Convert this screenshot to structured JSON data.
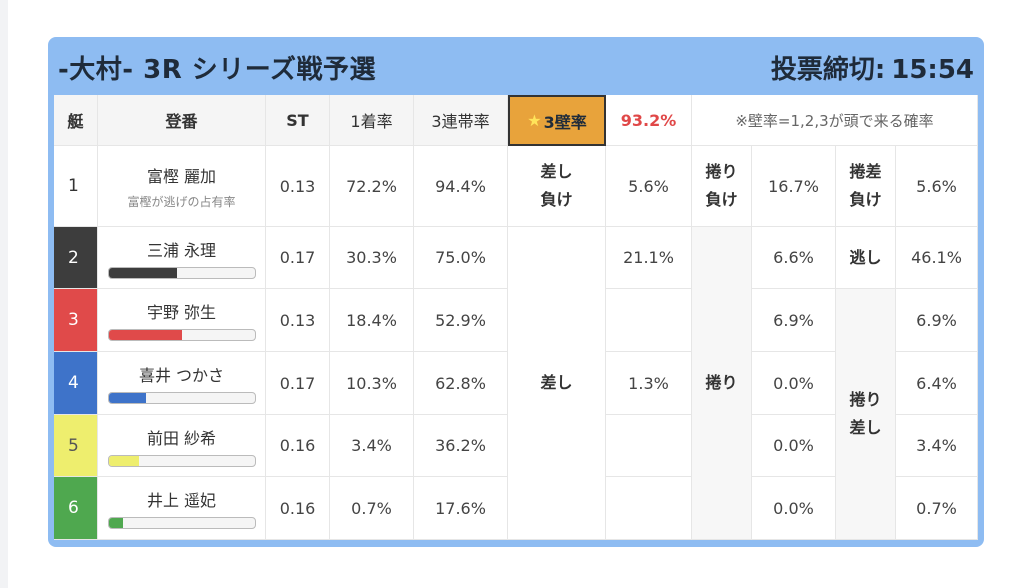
{
  "header": {
    "title": "-大村- 3R シリーズ戦予選",
    "deadline_label": "投票締切:",
    "deadline_time": "15:54"
  },
  "columns": {
    "waku": "艇",
    "name": "登番",
    "st": "ST",
    "first": "1着率",
    "trio": "3連帯率",
    "wall_star": "★",
    "wall_label": "3壁率",
    "wall_value": "93.2%",
    "note": "※壁率=1,2,3が頭で来る確率"
  },
  "racers": [
    {
      "num": "1",
      "name": "富樫 麗加",
      "sub": "富樫が逃げの占有率",
      "st": "0.13",
      "first": "72.2%",
      "trio": "94.4%",
      "color": "#ffffff",
      "num_color": "#333333",
      "bar": null
    },
    {
      "num": "2",
      "name": "三浦 永理",
      "st": "0.17",
      "first": "30.3%",
      "trio": "75.0%",
      "color": "#3d3d3d",
      "num_color": "#ffffff",
      "bar": 0.47
    },
    {
      "num": "3",
      "name": "宇野 弥生",
      "st": "0.13",
      "first": "18.4%",
      "trio": "52.9%",
      "color": "#e04a4a",
      "num_color": "#ffffff",
      "bar": 0.5
    },
    {
      "num": "4",
      "name": "喜井 つかさ",
      "st": "0.17",
      "first": "10.3%",
      "trio": "62.8%",
      "color": "#3e73c9",
      "num_color": "#ffffff",
      "bar": 0.26
    },
    {
      "num": "5",
      "name": "前田 紗希",
      "st": "0.16",
      "first": "3.4%",
      "trio": "36.2%",
      "color": "#eeee6e",
      "num_color": "#555555",
      "bar": 0.21
    },
    {
      "num": "6",
      "name": "井上 遥妃",
      "st": "0.16",
      "first": "0.7%",
      "trio": "17.6%",
      "color": "#4fa84f",
      "num_color": "#ffffff",
      "bar": 0.1
    }
  ],
  "row1_extra": {
    "sashi_make_1": "差し",
    "sashi_make_2": "負け",
    "sashi_make_val": "5.6%",
    "makuri_make_1": "捲り",
    "makuri_make_2": "負け",
    "makuri_make_val": "16.7%",
    "makurisashi_make_1": "捲差",
    "makurisashi_make_2": "負け",
    "makurisashi_make_val": "5.6%"
  },
  "sashi": {
    "label": "差し",
    "row2_val": "21.1%",
    "row4_val": "1.3%"
  },
  "makuri": {
    "label": "捲り",
    "vals": [
      "6.6%",
      "6.9%",
      "0.0%",
      "0.0%",
      "0.0%"
    ]
  },
  "nige": {
    "label": "逃し",
    "val": "46.1%"
  },
  "makurisashi": {
    "label_1": "捲り",
    "label_2": "差し",
    "vals": [
      "6.9%",
      "6.4%",
      "3.4%",
      "0.7%"
    ]
  }
}
